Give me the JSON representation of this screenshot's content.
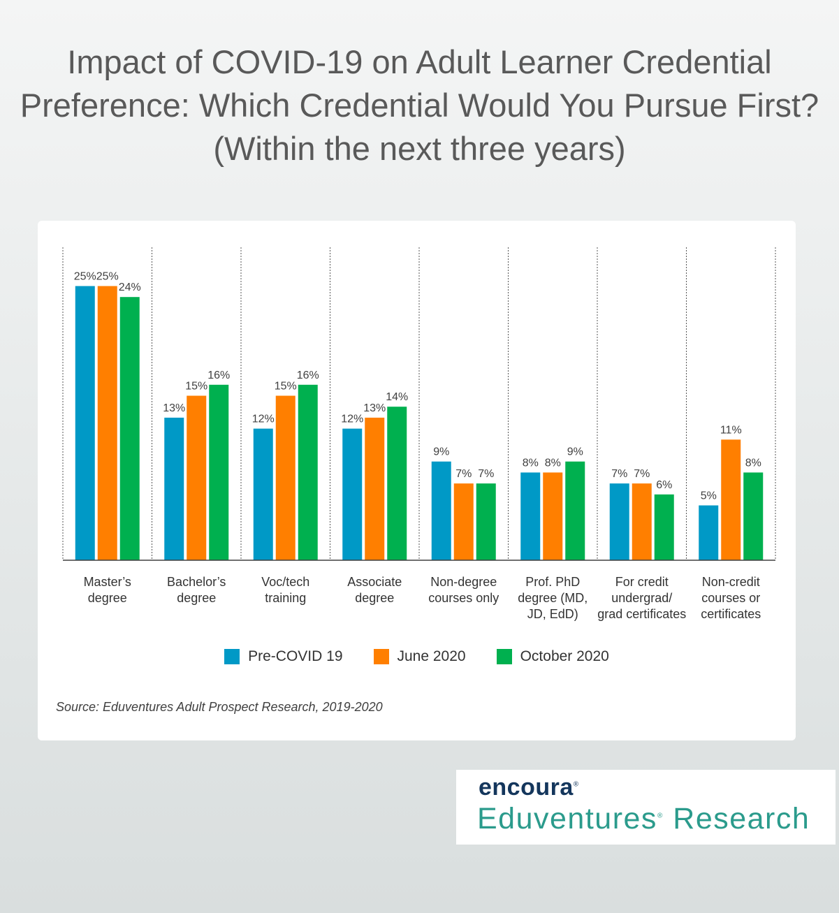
{
  "title": "Impact of COVID-19 on Adult Learner Credential Preference: Which Credential Would You Pursue First? (Within the next three years)",
  "source": "Source: Eduventures Adult Prospect Research, 2019-2020",
  "brand": {
    "logo_text": "encoura",
    "registered_mark": "®",
    "logo_sub": "Eduventures",
    "logo_sub_mark": "®",
    "logo_sub_tail": " Research",
    "logo_color": "#14365c",
    "sub_color": "#2b9b8c"
  },
  "chart_data": {
    "type": "bar",
    "categories": [
      "Master’s degree",
      "Bachelor’s degree",
      "Voc/tech training",
      "Associate degree",
      "Non-degree courses only",
      "Prof. PhD degree (MD, JD, EdD)",
      "For credit undergrad/ grad certificates",
      "Non-credit courses or certificates"
    ],
    "series": [
      {
        "name": "Pre-COVID 19",
        "color": "#0099c6",
        "values": [
          25,
          13,
          12,
          12,
          9,
          8,
          7,
          5
        ]
      },
      {
        "name": "June 2020",
        "color": "#ff7f00",
        "values": [
          25,
          15,
          15,
          13,
          7,
          8,
          7,
          11
        ]
      },
      {
        "name": "October 2020",
        "color": "#00b04f",
        "values": [
          24,
          16,
          16,
          14,
          7,
          9,
          6,
          8
        ]
      }
    ],
    "value_suffix": "%",
    "ylim": [
      0,
      25
    ],
    "legend_position": "bottom",
    "grid": "vertical dotted separators"
  }
}
